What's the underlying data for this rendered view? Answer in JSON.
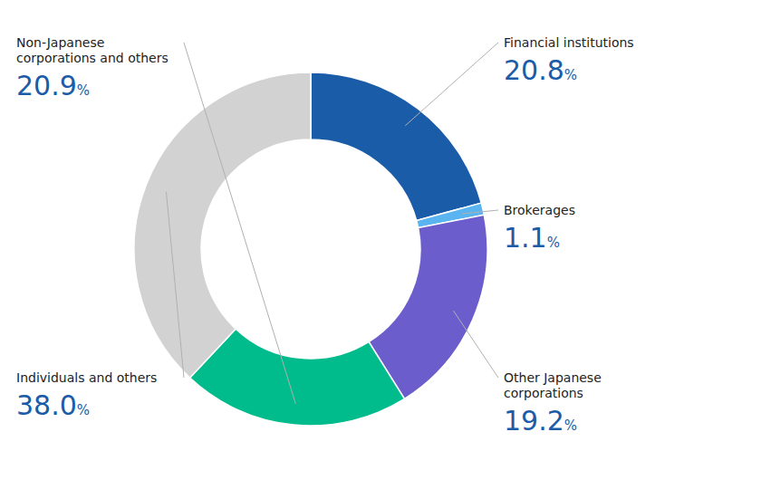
{
  "chart_data": {
    "type": "donut",
    "categories": [
      "Financial institutions",
      "Brokerages",
      "Other Japanese\ncorporations",
      "Non-Japanese\ncorporations and others",
      "Individuals and others"
    ],
    "values": [
      20.8,
      1.1,
      19.2,
      20.9,
      38.0
    ],
    "value_labels": [
      "20.8%",
      "1.1%",
      "19.2%",
      "20.9%",
      "38.0%"
    ],
    "colors": [
      "#1a5ca8",
      "#5ab4f0",
      "#6b5ecc",
      "#00bc8c",
      "#d2d2d2"
    ],
    "data_labels": true
  }
}
